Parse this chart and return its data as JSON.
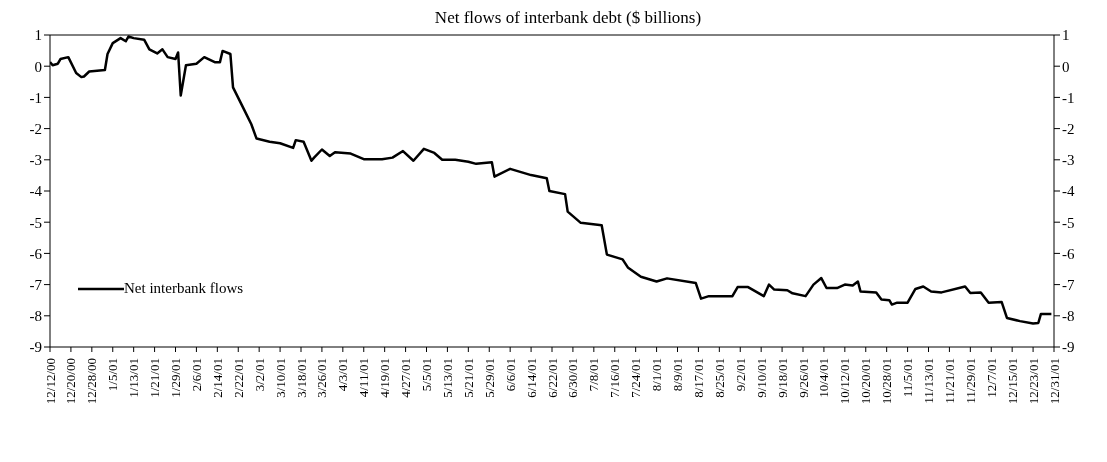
{
  "chart_data": {
    "type": "line",
    "title": "Net flows of interbank debt ($ billions)",
    "x": [
      "2000-12-12",
      "2000-12-13",
      "2000-12-15",
      "2000-12-16",
      "2000-12-19",
      "2000-12-22",
      "2000-12-24",
      "2000-12-25",
      "2000-12-27",
      "2001-01-02",
      "2001-01-03",
      "2001-01-05",
      "2001-01-08",
      "2001-01-10",
      "2001-01-11",
      "2001-01-13",
      "2001-01-17",
      "2001-01-19",
      "2001-01-22",
      "2001-01-24",
      "2001-01-26",
      "2001-01-29",
      "2001-01-30",
      "2001-01-31",
      "2001-02-02",
      "2001-02-06",
      "2001-02-09",
      "2001-02-13",
      "2001-02-15",
      "2001-02-16",
      "2001-02-19",
      "2001-02-20",
      "2001-02-24",
      "2001-02-27",
      "2001-03-01",
      "2001-03-06",
      "2001-03-10",
      "2001-03-15",
      "2001-03-16",
      "2001-03-19",
      "2001-03-22",
      "2001-03-23",
      "2001-03-26",
      "2001-03-29",
      "2001-03-31",
      "2001-04-06",
      "2001-04-11",
      "2001-04-18",
      "2001-04-22",
      "2001-04-26",
      "2001-04-30",
      "2001-05-04",
      "2001-05-08",
      "2001-05-11",
      "2001-05-16",
      "2001-05-21",
      "2001-05-24",
      "2001-05-30",
      "2001-05-31",
      "2001-06-06",
      "2001-06-14",
      "2001-06-20",
      "2001-06-21",
      "2001-06-27",
      "2001-06-28",
      "2001-07-03",
      "2001-07-11",
      "2001-07-13",
      "2001-07-19",
      "2001-07-21",
      "2001-07-26",
      "2001-08-01",
      "2001-08-05",
      "2001-08-16",
      "2001-08-18",
      "2001-08-21",
      "2001-08-30",
      "2001-09-01",
      "2001-09-05",
      "2001-09-11",
      "2001-09-13",
      "2001-09-15",
      "2001-09-20",
      "2001-09-22",
      "2001-09-27",
      "2001-09-30",
      "2001-10-03",
      "2001-10-05",
      "2001-10-09",
      "2001-10-12",
      "2001-10-15",
      "2001-10-17",
      "2001-10-18",
      "2001-10-24",
      "2001-10-26",
      "2001-10-29",
      "2001-10-30",
      "2001-11-01",
      "2001-11-05",
      "2001-11-08",
      "2001-11-11",
      "2001-11-14",
      "2001-11-18",
      "2001-11-27",
      "2001-11-29",
      "2001-12-03",
      "2001-12-06",
      "2001-12-11",
      "2001-12-13",
      "2001-12-18",
      "2001-12-23",
      "2001-12-25",
      "2001-12-26",
      "2001-12-30"
    ],
    "series": [
      {
        "name": "Net interbank flows",
        "color": "#000000",
        "values": [
          0.13,
          0.03,
          0.08,
          0.23,
          0.29,
          -0.22,
          -0.35,
          -0.33,
          -0.17,
          -0.12,
          0.39,
          0.74,
          0.9,
          0.8,
          0.95,
          0.9,
          0.85,
          0.54,
          0.41,
          0.54,
          0.29,
          0.23,
          0.44,
          -0.94,
          0.03,
          0.08,
          0.29,
          0.13,
          0.13,
          0.49,
          0.39,
          -0.68,
          -1.35,
          -1.86,
          -2.32,
          -2.42,
          -2.47,
          -2.62,
          -2.37,
          -2.42,
          -3.03,
          -2.93,
          -2.67,
          -2.88,
          -2.76,
          -2.8,
          -2.98,
          -2.98,
          -2.93,
          -2.72,
          -3.03,
          -2.65,
          -2.78,
          -3.0,
          -3.0,
          -3.06,
          -3.13,
          -3.08,
          -3.54,
          -3.29,
          -3.49,
          -3.59,
          -4.0,
          -4.1,
          -4.66,
          -5.02,
          -5.1,
          -6.04,
          -6.19,
          -6.45,
          -6.75,
          -6.9,
          -6.8,
          -6.95,
          -7.45,
          -7.37,
          -7.37,
          -7.08,
          -7.08,
          -7.37,
          -7.0,
          -7.16,
          -7.18,
          -7.28,
          -7.37,
          -7.0,
          -6.79,
          -7.11,
          -7.11,
          -7.0,
          -7.03,
          -6.9,
          -7.22,
          -7.25,
          -7.48,
          -7.5,
          -7.64,
          -7.58,
          -7.58,
          -7.14,
          -7.06,
          -7.22,
          -7.25,
          -7.06,
          -7.27,
          -7.25,
          -7.58,
          -7.56,
          -8.07,
          -8.17,
          -8.25,
          -8.23,
          -7.94,
          -7.94
        ]
      }
    ],
    "xlim": [
      "2000-12-12",
      "2001-12-31"
    ],
    "xticks": [
      {
        "value": "2000-12-12",
        "label": "12/12/00"
      },
      {
        "value": "2000-12-20",
        "label": "12/20/00"
      },
      {
        "value": "2000-12-28",
        "label": "12/28/00"
      },
      {
        "value": "2001-01-05",
        "label": "1/5/01"
      },
      {
        "value": "2001-01-13",
        "label": "1/13/01"
      },
      {
        "value": "2001-01-21",
        "label": "1/21/01"
      },
      {
        "value": "2001-01-29",
        "label": "1/29/01"
      },
      {
        "value": "2001-02-06",
        "label": "2/6/01"
      },
      {
        "value": "2001-02-14",
        "label": "2/14/01"
      },
      {
        "value": "2001-02-22",
        "label": "2/22/01"
      },
      {
        "value": "2001-03-02",
        "label": "3/2/01"
      },
      {
        "value": "2001-03-10",
        "label": "3/10/01"
      },
      {
        "value": "2001-03-18",
        "label": "3/18/01"
      },
      {
        "value": "2001-03-26",
        "label": "3/26/01"
      },
      {
        "value": "2001-04-03",
        "label": "4/3/01"
      },
      {
        "value": "2001-04-11",
        "label": "4/11/01"
      },
      {
        "value": "2001-04-19",
        "label": "4/19/01"
      },
      {
        "value": "2001-04-27",
        "label": "4/27/01"
      },
      {
        "value": "2001-05-05",
        "label": "5/5/01"
      },
      {
        "value": "2001-05-13",
        "label": "5/13/01"
      },
      {
        "value": "2001-05-21",
        "label": "5/21/01"
      },
      {
        "value": "2001-05-29",
        "label": "5/29/01"
      },
      {
        "value": "2001-06-06",
        "label": "6/6/01"
      },
      {
        "value": "2001-06-14",
        "label": "6/14/01"
      },
      {
        "value": "2001-06-22",
        "label": "6/22/01"
      },
      {
        "value": "2001-06-30",
        "label": "6/30/01"
      },
      {
        "value": "2001-07-08",
        "label": "7/8/01"
      },
      {
        "value": "2001-07-16",
        "label": "7/16/01"
      },
      {
        "value": "2001-07-24",
        "label": "7/24/01"
      },
      {
        "value": "2001-08-01",
        "label": "8/1/01"
      },
      {
        "value": "2001-08-09",
        "label": "8/9/01"
      },
      {
        "value": "2001-08-17",
        "label": "8/17/01"
      },
      {
        "value": "2001-08-25",
        "label": "8/25/01"
      },
      {
        "value": "2001-09-02",
        "label": "9/2/01"
      },
      {
        "value": "2001-09-10",
        "label": "9/10/01"
      },
      {
        "value": "2001-09-18",
        "label": "9/18/01"
      },
      {
        "value": "2001-09-26",
        "label": "9/26/01"
      },
      {
        "value": "2001-10-04",
        "label": "10/4/01"
      },
      {
        "value": "2001-10-12",
        "label": "10/12/01"
      },
      {
        "value": "2001-10-20",
        "label": "10/20/01"
      },
      {
        "value": "2001-10-28",
        "label": "10/28/01"
      },
      {
        "value": "2001-11-05",
        "label": "11/5/01"
      },
      {
        "value": "2001-11-13",
        "label": "11/13/01"
      },
      {
        "value": "2001-11-21",
        "label": "11/21/01"
      },
      {
        "value": "2001-11-29",
        "label": "11/29/01"
      },
      {
        "value": "2001-12-07",
        "label": "12/7/01"
      },
      {
        "value": "2001-12-15",
        "label": "12/15/01"
      },
      {
        "value": "2001-12-23",
        "label": "12/23/01"
      },
      {
        "value": "2001-12-31",
        "label": "12/31/01"
      }
    ],
    "ylim": [
      -9,
      1
    ],
    "yticks": [
      -9,
      -8,
      -7,
      -6,
      -5,
      -4,
      -3,
      -2,
      -1,
      0,
      1
    ],
    "y2lim": [
      -9,
      1
    ],
    "y2ticks": [
      -9,
      -8,
      -7,
      -6,
      -5,
      -4,
      -3,
      -2,
      -1,
      0,
      1
    ],
    "legend": "left",
    "grid": false,
    "marker": "none",
    "line_style": "solid"
  }
}
